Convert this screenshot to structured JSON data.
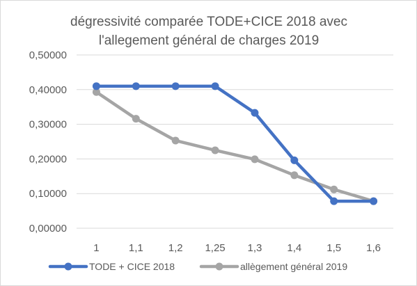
{
  "chart_data": {
    "type": "line",
    "title_lines": [
      "dégressivité comparée TODE+CICE 2018 avec",
      "l'allegement général de charges 2019"
    ],
    "xlabel": "",
    "ylabel": "",
    "categories": [
      "1",
      "1,1",
      "1,2",
      "1,25",
      "1,3",
      "1,4",
      "1,5",
      "1,6"
    ],
    "y_ticks": [
      "0,00000",
      "0,10000",
      "0,20000",
      "0,30000",
      "0,40000",
      "0,50000"
    ],
    "ylim": [
      0,
      0.5
    ],
    "grid": "horizontal",
    "legend_position": "bottom",
    "series": [
      {
        "name": "TODE + CICE 2018",
        "color": "#4472c4",
        "values": [
          0.41,
          0.41,
          0.41,
          0.41,
          0.333,
          0.196,
          0.078,
          0.078
        ]
      },
      {
        "name": "allègement général 2019",
        "color": "#a5a5a5",
        "values": [
          0.393,
          0.316,
          0.253,
          0.225,
          0.199,
          0.153,
          0.112,
          0.078
        ]
      }
    ],
    "gridline_color": "#d9d9d9",
    "text_color": "#595959"
  }
}
